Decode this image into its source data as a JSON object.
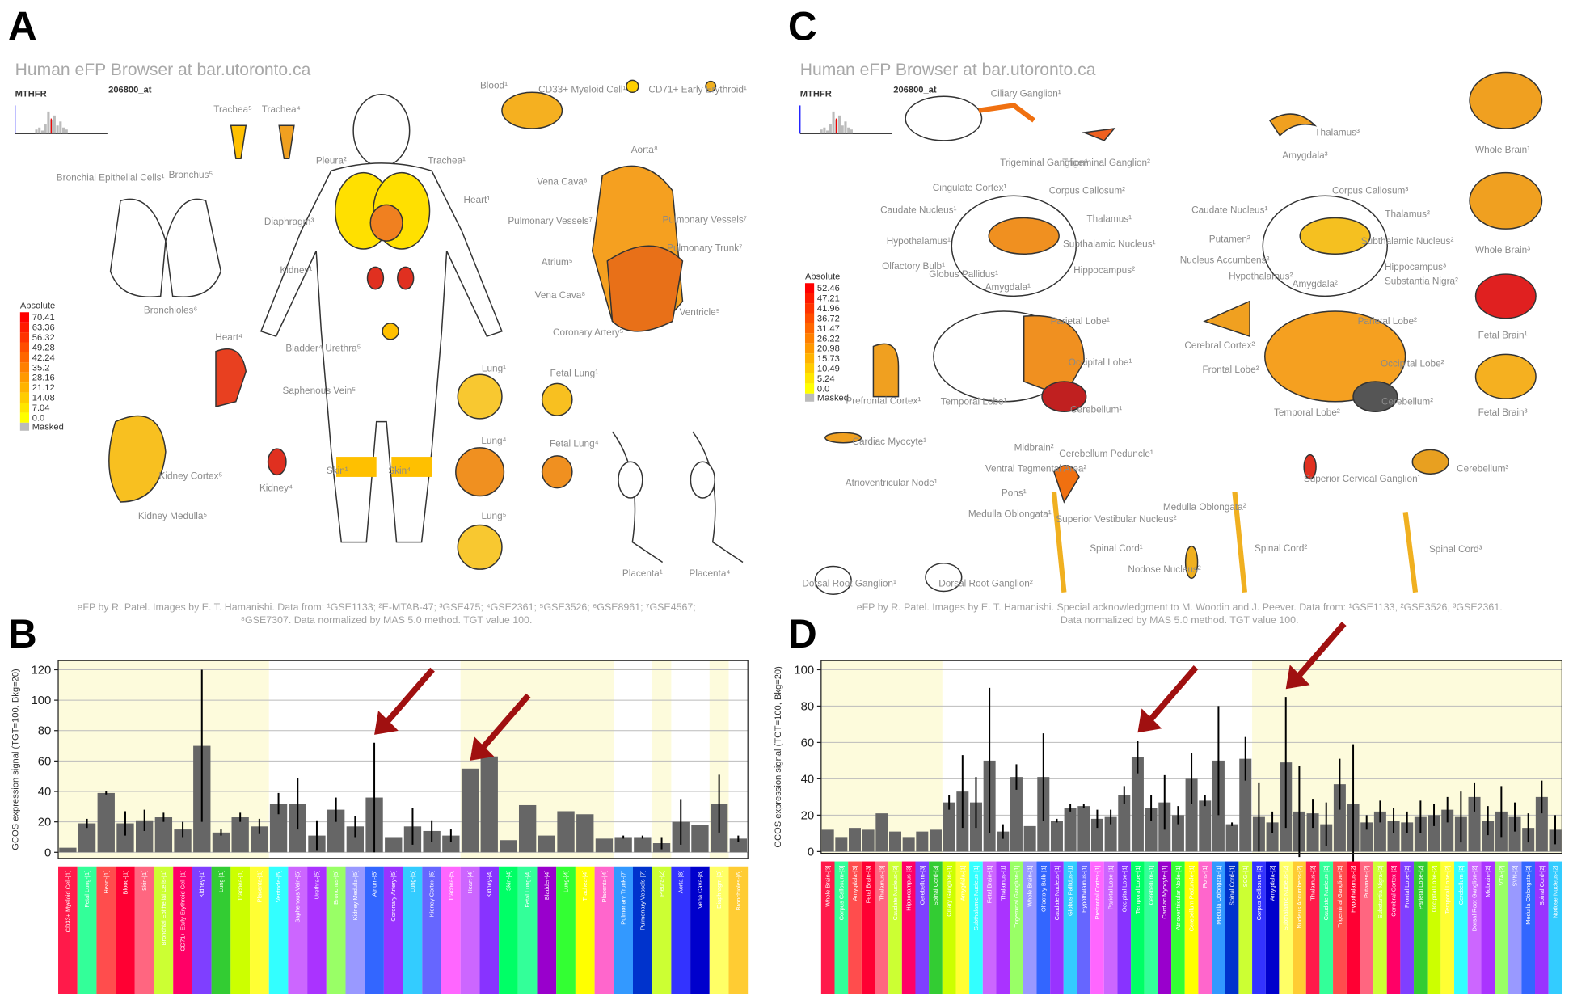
{
  "panels": [
    "A",
    "B",
    "C",
    "D"
  ],
  "panel_a": {
    "title": "Human eFP Browser at bar.utoronto.ca",
    "gene": "MTHFR",
    "probe": "206800_at",
    "legend": {
      "title": "Absolute",
      "levels": [
        "70.41",
        "63.36",
        "56.32",
        "49.28",
        "42.24",
        "35.2",
        "28.16",
        "21.12",
        "14.08",
        "7.04",
        "0.0"
      ],
      "masked": "Masked"
    },
    "labels": [
      "Trachea⁵",
      "Trachea⁴",
      "Bronchial Epithelial Cells¹",
      "Bronchus⁵",
      "Bronchioles⁶",
      "Pleura²",
      "Trachea¹",
      "Heart¹",
      "Diaphragm³",
      "Kidney¹",
      "Blood¹",
      "CD33+ Myeloid Cell¹",
      "CD71+ Early Erythroid¹",
      "Aorta⁸",
      "Vena Cava⁸",
      "Pulmonary Vessels⁷",
      "Pulmonary Vessels⁷",
      "Pulmonary Trunk⁷",
      "Atrium⁵",
      "Vena Cava⁸",
      "Ventricle⁵",
      "Coronary Artery⁵",
      "Heart⁴",
      "Bladder⁴ Urethra⁵",
      "Saphenous Vein⁵",
      "Lung¹",
      "Fetal Lung¹",
      "Lung⁴",
      "Fetal Lung⁴",
      "Lung⁵",
      "Kidney Cortex⁵",
      "Kidney Medulla⁵",
      "Kidney⁴",
      "Skin¹",
      "Skin⁴",
      "Placenta¹",
      "Placenta⁴"
    ],
    "footer": [
      "eFP by R. Patel. Images by E. T. Hamanishi. Data from: ¹GSE1133; ²E-MTAB-47; ³GSE475; ⁴GSE2361; ⁵GSE3526; ⁶GSE8961; ⁷GSE4567;",
      "⁸GSE7307. Data normalized  by MAS 5.0 method. TGT value 100."
    ]
  },
  "panel_c": {
    "title": "Human eFP Browser at bar.utoronto.ca",
    "gene": "MTHFR",
    "probe": "206800_at",
    "legend": {
      "title": "Absolute",
      "levels": [
        "52.46",
        "47.21",
        "41.96",
        "36.72",
        "31.47",
        "26.22",
        "20.98",
        "15.73",
        "10.49",
        "5.24",
        "0.0"
      ],
      "masked": "Masked"
    },
    "labels": [
      "Ciliary Ganglion¹",
      "Trigeminal Ganglion¹",
      "Trigeminal Ganglion²",
      "Thalamus³",
      "Amygdala³",
      "Whole Brain¹",
      "Cingulate Cortex¹",
      "Corpus Callosum²",
      "Caudate Nucleus¹",
      "Thalamus¹",
      "Subthalamic Nucleus¹",
      "Hypothalamus¹",
      "Olfactory Bulb¹",
      "Globus Pallidus¹",
      "Hippocampus²",
      "Amygdala¹",
      "Corpus Callosum³",
      "Caudate Nucleus¹",
      "Thalamus²",
      "Putamen²",
      "Subthalamic Nucleus²",
      "Nucleus Accumbens²",
      "Hypothalamus²",
      "Hippocampus³",
      "Amygdala²",
      "Substantia Nigra²",
      "Whole Brain³",
      "Fetal Brain¹",
      "Fetal Brain³",
      "Parietal Lobe¹",
      "Occipital Lobe¹",
      "Temporal Lobe¹",
      "Cerebellum¹",
      "Prefrontal Cortex¹",
      "Cerebral Cortex²",
      "Parietal Lobe²",
      "Frontal Lobe²",
      "Occipital Lobe²",
      "Temporal Lobe²",
      "Cerebellum²",
      "Cardiac Myocyte¹",
      "Atrioventricular Node¹",
      "Midbrain²",
      "Ventral Tegmental Area²",
      "Cerebellum Peduncle¹",
      "Pons¹",
      "Medulla Oblongata¹",
      "Superior Vestibular Nucleus²",
      "Spinal Cord¹",
      "Medulla Oblongata²",
      "Superior Cervical Ganglion¹",
      "Cerebellum³",
      "Spinal Cord²",
      "Spinal Cord³",
      "Nodose Nucleus²",
      "Dorsal Root Ganglion¹",
      "Dorsal Root Ganglion²"
    ],
    "footer": [
      "eFP by R. Patel. Images by E. T. Hamanishi. Special acknowledgment to M. Woodin and J. Peever. Data from: ¹GSE1133, ²GSE3526, ³GSE2361.",
      "Data normalized by MAS 5.0 method. TGT value 100."
    ]
  },
  "chart_data": [
    {
      "type": "bar",
      "y_label": "GCOS expression signal (TGT=100, Bkg=20)",
      "color": "#666666",
      "categories": [
        "CD33+ Myeloid Cell-[1]",
        "Fetal Lung-[1]",
        "Heart-[1]",
        "Blood-[1]",
        "Skin-[1]",
        "Bronchial Epithelial Cells-[1]",
        "CD71+ Early Erythroid Cell-[1]",
        "Kidney-[1]",
        "Lung-[1]",
        "Trachea-[1]",
        "Placenta-[1]",
        "Ventricle-[5]",
        "Saphenous Vein-[5]",
        "Urethra-[5]",
        "Bronchus-[5]",
        "Kidney Medulla-[5]",
        "Atrium-[5]",
        "Coronary Artery-[5]",
        "Lung-[5]",
        "Kidney Cortex-[5]",
        "Trachea-[5]",
        "Heart-[4]",
        "Kidney-[4]",
        "Skin-[4]",
        "Fetal Lung-[4]",
        "Bladder-[4]",
        "Lung-[4]",
        "Trachea-[4]",
        "Placenta-[4]",
        "Pulmonary Trunk-[7]",
        "Pulmonary Vessels-[7]",
        "Pleura-[2]",
        "Aorta-[8]",
        "Vena Cava-[8]",
        "Diaphragm-[3]",
        "Bronchioles-[6]"
      ],
      "values": [
        3,
        19,
        39,
        19,
        21,
        23,
        15,
        70,
        13,
        23,
        17,
        32,
        32,
        11,
        28,
        17,
        36,
        10,
        17,
        14,
        11,
        55,
        63,
        8,
        31,
        11,
        27,
        25,
        9,
        10,
        10,
        6,
        20,
        18,
        32,
        9
      ],
      "errors": [
        null,
        3,
        1,
        8,
        7,
        3,
        5,
        50,
        2,
        3,
        5,
        7,
        17,
        10,
        8,
        7,
        36,
        null,
        12,
        7,
        4,
        null,
        null,
        null,
        null,
        null,
        null,
        null,
        null,
        1,
        1,
        4,
        15,
        null,
        19,
        2
      ],
      "ylim": [
        -4,
        126
      ],
      "yticks": [
        0,
        20,
        40,
        60,
        80,
        100,
        120
      ],
      "grid": true
    },
    {
      "type": "bar",
      "y_label": "GCOS expression signal (TGT=100, Bkg=20)",
      "color": "#666666",
      "categories": [
        "Whole Brain-[3]",
        "Corpus Callosum-[3]",
        "Amygdala-[3]",
        "Fetal Brain-[3]",
        "Thalamus-[3]",
        "Caudate Nucleus-[3]",
        "Hippocampus-[3]",
        "Cerebellum-[3]",
        "Spinal Cord-[3]",
        "Ciliary Ganglion-[1]",
        "Amygdala-[1]",
        "Subthalamic Nucleus-[1]",
        "Fetal Brain-[1]",
        "Thalamus-[1]",
        "Trigeminal Ganglion-[1]",
        "Whole Brain-[1]",
        "Olfactory Bulb-[1]",
        "Caudate Nucleus-[1]",
        "Globus Pallidus-[1]",
        "Hypothalamus-[1]",
        "Prefrontal Cortex-[1]",
        "Parietal Lobe-[1]",
        "Occipital Lobe-[1]",
        "Temporal Lobe-[1]",
        "Cerebellum-[1]",
        "Cardiac Myocyte-[1]",
        "Atrioventricular Node-[1]",
        "Cerebellum Peduncle-[1]",
        "Pons-[1]",
        "Medulla Oblongata-[1]",
        "Spinal Cord-[1]",
        "SCG-[1]",
        "Corpus Callosum-[2]",
        "Amygdala-[2]",
        "Subthalamic Nucleus-[2]",
        "Nucleus Accumbens-[2]",
        "Thalamus-[2]",
        "Caudate Nucleus-[2]",
        "Trigeminal Ganglion-[2]",
        "Hypothalamus-[2]",
        "Putamen-[2]",
        "Substantia Nigra-[2]",
        "Cerebral Cortex-[2]",
        "Frontal Lobe-[2]",
        "Parietal Lobe-[2]",
        "Occipital Lobe-[2]",
        "Temporal Lobe-[2]",
        "Cerebellum-[2]",
        "Dorsal Root Ganglion-[2]",
        "Midbrain-[2]",
        "VTA-[2]",
        "SVN-[2]",
        "Medulla Oblongata-[2]",
        "Spinal Cord-[2]",
        "Nodose Nucleus-[2]"
      ],
      "values": [
        12,
        8,
        13,
        12,
        21,
        11,
        8,
        11,
        12,
        27,
        33,
        27,
        50,
        11,
        41,
        14,
        41,
        17,
        24,
        25,
        18,
        19,
        31,
        52,
        24,
        27,
        20,
        40,
        28,
        50,
        15,
        51,
        19,
        16,
        49,
        22,
        21,
        15,
        37,
        26,
        16,
        22,
        17,
        16,
        19,
        20,
        23,
        19,
        30,
        17,
        22,
        19,
        13,
        30,
        12
      ],
      "errors": [
        null,
        null,
        null,
        null,
        null,
        null,
        null,
        null,
        null,
        4,
        20,
        14,
        40,
        4,
        7,
        null,
        24,
        1,
        2,
        1,
        5,
        4,
        5,
        9,
        7,
        15,
        5,
        14,
        3,
        30,
        1,
        12,
        19,
        6,
        36,
        25,
        8,
        12,
        14,
        33,
        4,
        6,
        7,
        6,
        9,
        6,
        7,
        14,
        8,
        8,
        14,
        8,
        8,
        9,
        8
      ],
      "ylim": [
        -1,
        105
      ],
      "yticks": [
        0,
        20,
        40,
        60,
        80,
        100
      ],
      "grid": true
    }
  ]
}
